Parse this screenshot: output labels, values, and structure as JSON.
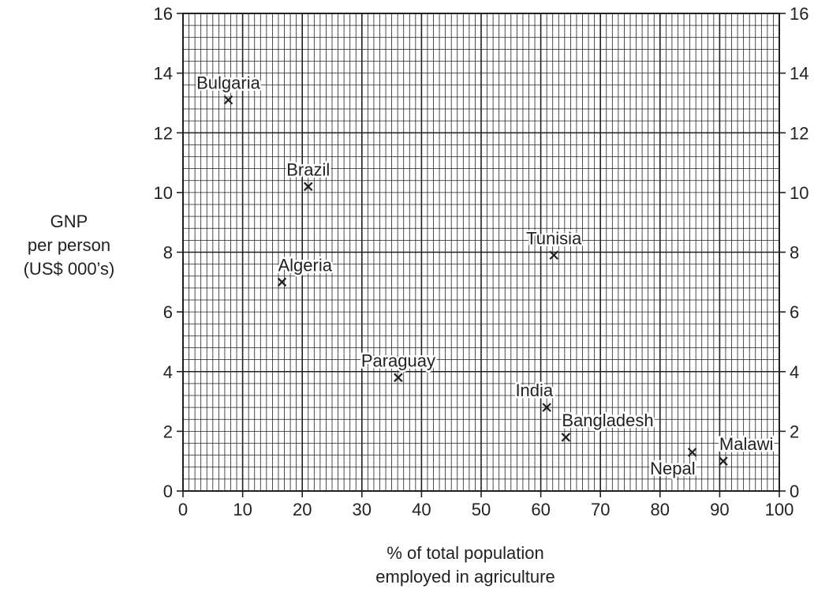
{
  "chart_data": {
    "type": "scatter",
    "title": "",
    "ylabel_lines": [
      "GNP",
      "per person",
      "(US$ 000’s)"
    ],
    "xlabel_lines": [
      "% of total population",
      "employed in agriculture"
    ],
    "xlim": [
      0,
      100
    ],
    "ylim": [
      0,
      16
    ],
    "x_ticks": [
      0,
      10,
      20,
      30,
      40,
      50,
      60,
      70,
      80,
      90,
      100
    ],
    "y_ticks": [
      0,
      2,
      4,
      6,
      8,
      10,
      12,
      14,
      16
    ],
    "y_ticks_right": true,
    "grid": "on (major every 10 % / 4 units, minor every 1 % / 0.4 units)",
    "marker": "×",
    "points": [
      {
        "label": "Bulgaria",
        "x": 7.6,
        "y": 13.1,
        "label_pos": "above"
      },
      {
        "label": "Brazil",
        "x": 21.0,
        "y": 10.2,
        "label_pos": "above"
      },
      {
        "label": "Algeria",
        "x": 16.6,
        "y": 7.0,
        "label_pos": "above-right"
      },
      {
        "label": "Tunisia",
        "x": 62.2,
        "y": 7.9,
        "label_pos": "above"
      },
      {
        "label": "Paraguay",
        "x": 36.1,
        "y": 3.8,
        "label_pos": "above"
      },
      {
        "label": "India",
        "x": 61.0,
        "y": 2.8,
        "label_pos": "above-left"
      },
      {
        "label": "Bangladesh",
        "x": 64.2,
        "y": 1.8,
        "label_pos": "above-right"
      },
      {
        "label": "Nepal",
        "x": 85.4,
        "y": 1.3,
        "label_pos": "below-left"
      },
      {
        "label": "Malawi",
        "x": 90.6,
        "y": 1.0,
        "label_pos": "above-right"
      }
    ]
  }
}
